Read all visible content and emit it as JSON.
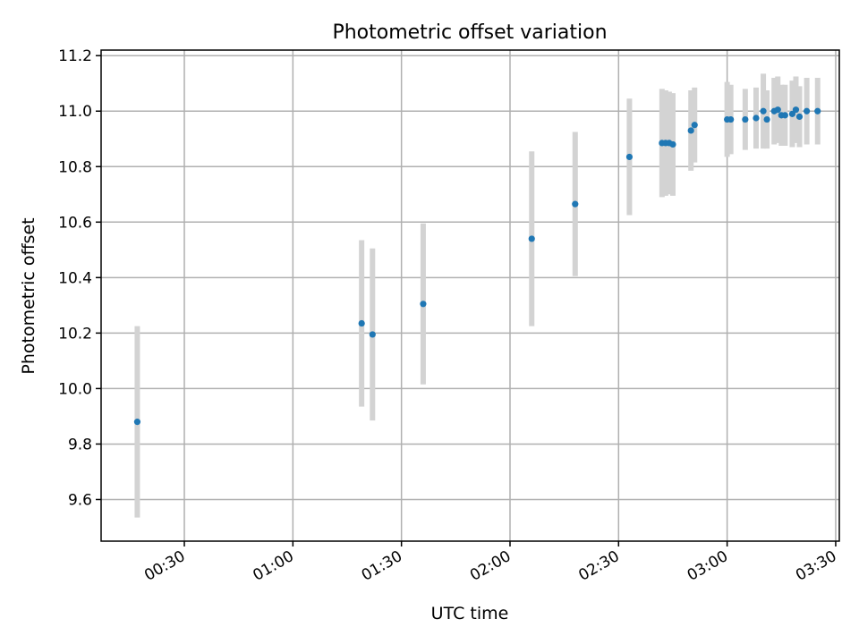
{
  "chart_data": {
    "type": "scatter",
    "title": "Photometric offset variation",
    "xlabel": "UTC time",
    "ylabel": "Photometric offset",
    "x_axis": {
      "kind": "time",
      "range": [
        "00:07",
        "03:31"
      ],
      "ticks": [
        "00:30",
        "01:00",
        "01:30",
        "02:00",
        "02:30",
        "03:00",
        "03:30"
      ]
    },
    "y_axis": {
      "range": [
        9.45,
        11.22
      ],
      "ticks": [
        "9.6",
        "9.8",
        "10.0",
        "10.2",
        "10.4",
        "10.6",
        "10.8",
        "11.0",
        "11.2"
      ]
    },
    "grid": true,
    "point_color": "#1f77b4",
    "errorbar_color": "#d3d3d3",
    "points": [
      {
        "x": "00:17",
        "y": 9.88,
        "err": 0.345
      },
      {
        "x": "01:19",
        "y": 10.235,
        "err": 0.3
      },
      {
        "x": "01:22",
        "y": 10.195,
        "err": 0.31
      },
      {
        "x": "01:36",
        "y": 10.305,
        "err": 0.29
      },
      {
        "x": "02:06",
        "y": 10.54,
        "err": 0.315
      },
      {
        "x": "02:18",
        "y": 10.665,
        "err": 0.26
      },
      {
        "x": "02:33",
        "y": 10.835,
        "err": 0.21
      },
      {
        "x": "02:42",
        "y": 10.885,
        "err": 0.195
      },
      {
        "x": "02:43",
        "y": 10.885,
        "err": 0.19
      },
      {
        "x": "02:44",
        "y": 10.885,
        "err": 0.185
      },
      {
        "x": "02:45",
        "y": 10.88,
        "err": 0.185
      },
      {
        "x": "02:50",
        "y": 10.93,
        "err": 0.145
      },
      {
        "x": "02:51",
        "y": 10.95,
        "err": 0.135
      },
      {
        "x": "03:00",
        "y": 10.97,
        "err": 0.135
      },
      {
        "x": "03:01",
        "y": 10.97,
        "err": 0.125
      },
      {
        "x": "03:05",
        "y": 10.97,
        "err": 0.11
      },
      {
        "x": "03:08",
        "y": 10.975,
        "err": 0.11
      },
      {
        "x": "03:10",
        "y": 11.0,
        "err": 0.135
      },
      {
        "x": "03:11",
        "y": 10.97,
        "err": 0.105
      },
      {
        "x": "03:13",
        "y": 11.0,
        "err": 0.12
      },
      {
        "x": "03:14",
        "y": 11.005,
        "err": 0.12
      },
      {
        "x": "03:15",
        "y": 10.985,
        "err": 0.11
      },
      {
        "x": "03:16",
        "y": 10.985,
        "err": 0.11
      },
      {
        "x": "03:18",
        "y": 10.99,
        "err": 0.12
      },
      {
        "x": "03:19",
        "y": 11.005,
        "err": 0.12
      },
      {
        "x": "03:20",
        "y": 10.98,
        "err": 0.11
      },
      {
        "x": "03:22",
        "y": 11.0,
        "err": 0.12
      },
      {
        "x": "03:25",
        "y": 11.0,
        "err": 0.12
      }
    ]
  }
}
